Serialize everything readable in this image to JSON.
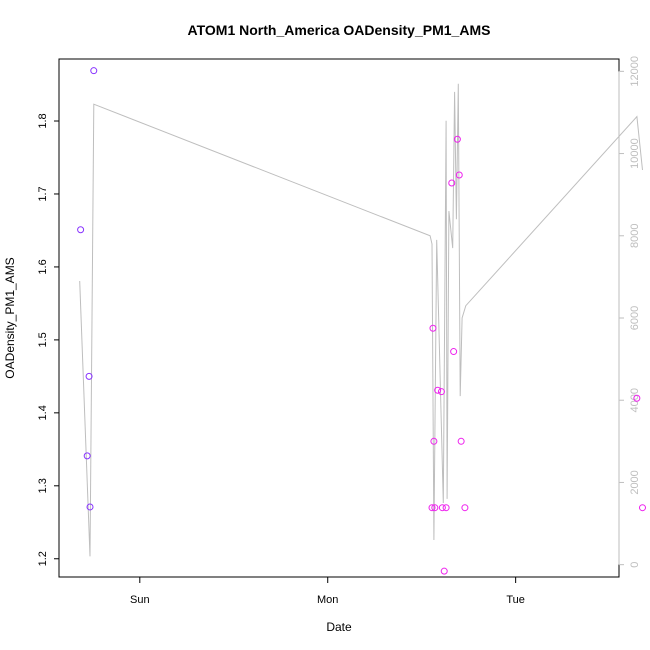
{
  "chart_data": {
    "type": "scatter",
    "title": "ATOM1 North_America OADensity_PM1_AMS",
    "xlabel": "Date",
    "ylabel": "OADensity_PM1_AMS",
    "x_unit": "days",
    "xlim": [
      -0.43,
      2.55
    ],
    "ylim": [
      1.175,
      1.885
    ],
    "x_ticks": [
      {
        "value": 0,
        "label": "Sun"
      },
      {
        "value": 1,
        "label": "Mon"
      },
      {
        "value": 2,
        "label": "Tue"
      }
    ],
    "y_ticks": [
      1.2,
      1.3,
      1.4,
      1.5,
      1.6,
      1.7,
      1.8
    ],
    "y2_ticks": [
      0,
      2000,
      4000,
      6000,
      8000,
      10000,
      12000
    ],
    "y2lim": [
      -300,
      12300
    ],
    "points": [
      {
        "x": -0.315,
        "y": 1.651,
        "color": "#8833ff"
      },
      {
        "x": -0.28,
        "y": 1.341,
        "color": "#8833ff"
      },
      {
        "x": -0.27,
        "y": 1.45,
        "color": "#8833ff"
      },
      {
        "x": -0.265,
        "y": 1.271,
        "color": "#8833ff"
      },
      {
        "x": -0.245,
        "y": 1.869,
        "color": "#8833ff"
      },
      {
        "x": 1.555,
        "y": 1.27,
        "color": "#ee22ee"
      },
      {
        "x": 1.56,
        "y": 1.516,
        "color": "#ee22ee"
      },
      {
        "x": 1.565,
        "y": 1.361,
        "color": "#ee22ee"
      },
      {
        "x": 1.57,
        "y": 1.27,
        "color": "#ee22ee"
      },
      {
        "x": 1.585,
        "y": 1.431,
        "color": "#ee22ee"
      },
      {
        "x": 1.605,
        "y": 1.429,
        "color": "#ee22ee"
      },
      {
        "x": 1.61,
        "y": 1.27,
        "color": "#ee22ee"
      },
      {
        "x": 1.62,
        "y": 1.183,
        "color": "#ee22ee"
      },
      {
        "x": 1.63,
        "y": 1.27,
        "color": "#ee22ee"
      },
      {
        "x": 1.66,
        "y": 1.715,
        "color": "#ee22ee"
      },
      {
        "x": 1.67,
        "y": 1.484,
        "color": "#ee22ee"
      },
      {
        "x": 1.69,
        "y": 1.775,
        "color": "#ee22ee"
      },
      {
        "x": 1.7,
        "y": 1.726,
        "color": "#ee22ee"
      },
      {
        "x": 1.71,
        "y": 1.361,
        "color": "#ee22ee"
      },
      {
        "x": 1.73,
        "y": 1.27,
        "color": "#ee22ee"
      },
      {
        "x": 2.645,
        "y": 1.42,
        "color": "#ee22ee"
      },
      {
        "x": 2.675,
        "y": 1.27,
        "color": "#ee22ee"
      }
    ],
    "line_series": {
      "axis": "right",
      "color": "#bebebe",
      "x": [
        -0.32,
        -0.265,
        -0.245,
        1.545,
        1.555,
        1.565,
        1.58,
        1.615,
        1.63,
        1.635,
        1.645,
        1.665,
        1.675,
        1.685,
        1.695,
        1.705,
        1.715,
        1.735,
        2.645,
        2.675
      ],
      "y": [
        6900,
        200,
        11200,
        8000,
        7800,
        600,
        7900,
        1500,
        10800,
        1600,
        8600,
        7700,
        11500,
        8400,
        11700,
        4100,
        6000,
        6300,
        10900,
        9600
      ]
    }
  }
}
